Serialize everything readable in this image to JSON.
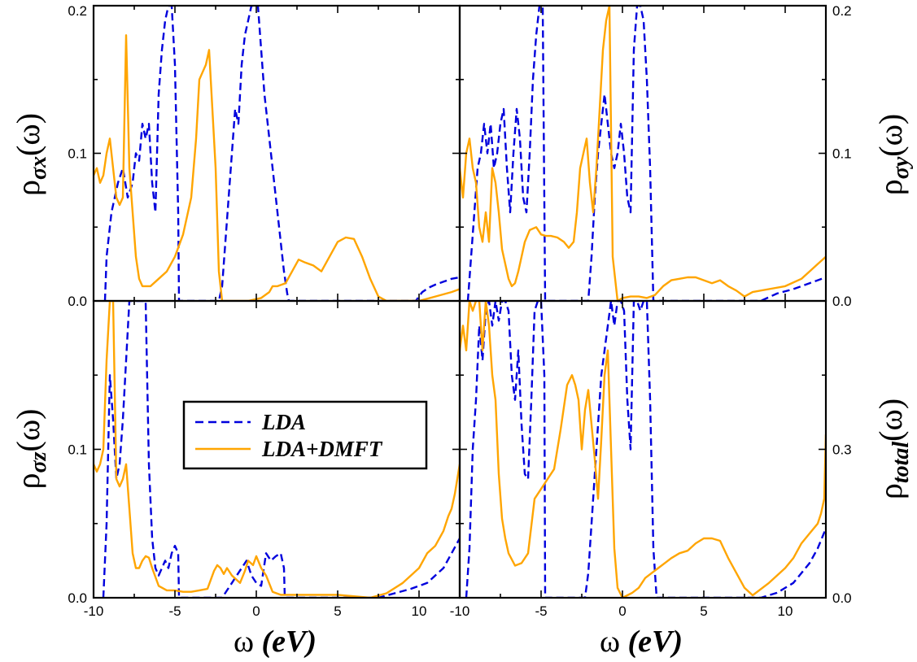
{
  "colors": {
    "lda": "#0000dd",
    "dmft": "#ffa500",
    "frame": "#000000"
  },
  "legend": {
    "placement": "middle-left of bottom-left panel",
    "entries": [
      "LDA",
      "LDA+DMFT"
    ]
  },
  "xaxis": {
    "label_symbol": "ω",
    "label_unit": "(eV)",
    "ticks_left": [
      "-10",
      "-5",
      "0",
      "5",
      "10"
    ],
    "ticks_right": [
      "-10",
      "-5",
      "0",
      "5",
      "10"
    ],
    "range": [
      -10,
      12.5
    ]
  },
  "panels": {
    "top_left": {
      "label_main": "ρ",
      "label_sub": "σx",
      "label_tail": "(ω)",
      "ticks": [
        "0.2",
        "0.1",
        "0.0"
      ]
    },
    "top_right": {
      "label_main": "ρ",
      "label_sub": "σy",
      "label_tail": "(ω)",
      "ticks": [
        "0.2",
        "0.1",
        "0.0"
      ]
    },
    "bottom_left": {
      "label_main": "ρ",
      "label_sub": "σz",
      "label_tail": "(ω)",
      "ticks": [
        "0.1",
        "0.0"
      ]
    },
    "bottom_right": {
      "label_main": "ρ",
      "label_sub": "total",
      "label_tail": "(ω)",
      "ticks": [
        "0.3",
        "0.0"
      ]
    }
  },
  "chart_data": [
    {
      "type": "line",
      "panel": "top_left",
      "xlim": [
        -10,
        12.5
      ],
      "ylim": [
        0,
        0.2
      ],
      "series": [
        {
          "name": "LDA",
          "style": "dashed",
          "x": [
            -9.3,
            -9.2,
            -8.9,
            -8.5,
            -8.2,
            -7.9,
            -7.6,
            -7.4,
            -7.2,
            -7.0,
            -6.8,
            -6.6,
            -6.4,
            -6.2,
            -6.0,
            -5.8,
            -5.6,
            -5.4,
            -5.2,
            -5.0,
            -4.8,
            -4.75,
            -4.6,
            -2.3,
            -2.1,
            -1.9,
            -1.7,
            -1.5,
            -1.3,
            -1.1,
            -0.9,
            -0.7,
            -0.5,
            -0.3,
            -0.1,
            0.1,
            0.3,
            0.5,
            0.7,
            0.9,
            1.1,
            1.3,
            1.5,
            1.7,
            1.9,
            2.0,
            9.8,
            10.2,
            10.6,
            11.0,
            11.5,
            12.0,
            12.5
          ],
          "y": [
            0,
            0.03,
            0.06,
            0.08,
            0.09,
            0.07,
            0.08,
            0.1,
            0.095,
            0.12,
            0.11,
            0.12,
            0.08,
            0.06,
            0.14,
            0.17,
            0.19,
            0.2,
            0.2,
            0.16,
            0.06,
            0.0,
            0.0,
            0.0,
            0.01,
            0.04,
            0.07,
            0.1,
            0.13,
            0.12,
            0.16,
            0.18,
            0.19,
            0.2,
            0.2,
            0.2,
            0.17,
            0.14,
            0.12,
            0.1,
            0.08,
            0.06,
            0.04,
            0.02,
            0.005,
            0.0,
            0.0,
            0.006,
            0.009,
            0.011,
            0.013,
            0.015,
            0.016
          ]
        },
        {
          "name": "LDA+DMFT",
          "style": "solid",
          "x": [
            -10,
            -9.8,
            -9.6,
            -9.4,
            -9.2,
            -9.0,
            -8.8,
            -8.6,
            -8.4,
            -8.2,
            -8.0,
            -7.8,
            -7.6,
            -7.4,
            -7.2,
            -7.0,
            -6.5,
            -6.0,
            -5.5,
            -5.0,
            -4.5,
            -4.0,
            -3.7,
            -3.5,
            -3.3,
            -3.1,
            -2.9,
            -2.7,
            -2.5,
            -2.3,
            -2.1,
            -1.5,
            -0.5,
            0.3,
            0.8,
            1.0,
            1.3,
            1.8,
            2.2,
            2.6,
            3.0,
            3.5,
            4.0,
            4.5,
            5.0,
            5.5,
            6.0,
            6.5,
            7.0,
            7.5,
            8.0,
            9.0,
            10.0,
            11.0,
            12.0,
            12.5
          ],
          "y": [
            0.085,
            0.09,
            0.08,
            0.085,
            0.1,
            0.11,
            0.09,
            0.07,
            0.065,
            0.07,
            0.18,
            0.09,
            0.06,
            0.03,
            0.015,
            0.01,
            0.01,
            0.015,
            0.02,
            0.03,
            0.045,
            0.07,
            0.11,
            0.15,
            0.155,
            0.16,
            0.17,
            0.13,
            0.09,
            0.02,
            0.0,
            0.0,
            0.0,
            0.002,
            0.006,
            0.01,
            0.01,
            0.012,
            0.02,
            0.028,
            0.026,
            0.024,
            0.02,
            0.03,
            0.04,
            0.043,
            0.042,
            0.03,
            0.015,
            0.003,
            0.0,
            0.0,
            0.0,
            0.003,
            0.006,
            0.008
          ]
        }
      ]
    },
    {
      "type": "line",
      "panel": "top_right",
      "xlim": [
        -10,
        12.5
      ],
      "ylim": [
        0,
        0.2
      ],
      "series": [
        {
          "name": "LDA",
          "style": "dashed",
          "x": [
            -9.5,
            -9.3,
            -9.1,
            -8.9,
            -8.7,
            -8.5,
            -8.3,
            -8.1,
            -7.9,
            -7.7,
            -7.5,
            -7.3,
            -7.1,
            -6.9,
            -6.7,
            -6.5,
            -6.3,
            -6.1,
            -5.9,
            -5.7,
            -5.5,
            -5.3,
            -5.1,
            -4.9,
            -4.75,
            -4.6,
            -2.1,
            -1.9,
            -1.7,
            -1.5,
            -1.3,
            -1.1,
            -0.9,
            -0.7,
            -0.5,
            -0.3,
            -0.1,
            0.1,
            0.3,
            0.5,
            0.7,
            0.9,
            1.1,
            1.3,
            1.5,
            1.7,
            1.9,
            8.5,
            9.5,
            10.5,
            11.0,
            11.5,
            12.0,
            12.5
          ],
          "y": [
            0.0,
            0.03,
            0.06,
            0.09,
            0.1,
            0.12,
            0.1,
            0.12,
            0.09,
            0.1,
            0.12,
            0.13,
            0.09,
            0.06,
            0.1,
            0.13,
            0.11,
            0.07,
            0.06,
            0.1,
            0.15,
            0.18,
            0.2,
            0.2,
            0.0,
            0.0,
            0.0,
            0.03,
            0.07,
            0.1,
            0.12,
            0.14,
            0.12,
            0.1,
            0.09,
            0.1,
            0.12,
            0.1,
            0.07,
            0.06,
            0.17,
            0.2,
            0.2,
            0.19,
            0.15,
            0.09,
            0.0,
            0.0,
            0.005,
            0.008,
            0.01,
            0.012,
            0.014,
            0.016
          ]
        },
        {
          "name": "LDA+DMFT",
          "style": "solid",
          "x": [
            -10,
            -9.8,
            -9.6,
            -9.4,
            -9.2,
            -9.0,
            -8.8,
            -8.6,
            -8.4,
            -8.2,
            -8.0,
            -7.8,
            -7.6,
            -7.4,
            -7.2,
            -7.0,
            -6.8,
            -6.6,
            -6.4,
            -6.2,
            -6.0,
            -5.7,
            -5.3,
            -5.0,
            -4.7,
            -4.4,
            -4.0,
            -3.6,
            -3.3,
            -3.0,
            -2.8,
            -2.6,
            -2.4,
            -2.2,
            -2.0,
            -1.8,
            -1.6,
            -1.4,
            -1.2,
            -1.0,
            -0.8,
            -0.6,
            -0.3,
            0.0,
            0.5,
            1.0,
            1.5,
            2.0,
            2.5,
            3.0,
            3.5,
            4.0,
            4.5,
            5.0,
            5.5,
            6.0,
            6.5,
            7.0,
            7.5,
            8.0,
            9.0,
            10.0,
            11.0,
            11.5,
            12.0,
            12.5
          ],
          "y": [
            0.09,
            0.07,
            0.1,
            0.11,
            0.09,
            0.08,
            0.05,
            0.04,
            0.06,
            0.04,
            0.09,
            0.08,
            0.06,
            0.035,
            0.025,
            0.015,
            0.01,
            0.012,
            0.02,
            0.03,
            0.04,
            0.048,
            0.05,
            0.045,
            0.044,
            0.044,
            0.043,
            0.04,
            0.036,
            0.04,
            0.06,
            0.09,
            0.1,
            0.11,
            0.08,
            0.06,
            0.09,
            0.13,
            0.17,
            0.19,
            0.2,
            0.03,
            0.0,
            0.002,
            0.003,
            0.003,
            0.002,
            0.004,
            0.01,
            0.014,
            0.015,
            0.016,
            0.016,
            0.014,
            0.012,
            0.014,
            0.01,
            0.007,
            0.003,
            0.006,
            0.008,
            0.01,
            0.015,
            0.02,
            0.025,
            0.03
          ]
        }
      ]
    },
    {
      "type": "line",
      "panel": "bottom_left",
      "xlim": [
        -10,
        12.5
      ],
      "ylim": [
        0,
        0.2
      ],
      "series": [
        {
          "name": "LDA",
          "style": "dashed",
          "x": [
            -9.4,
            -9.2,
            -9.0,
            -8.8,
            -8.6,
            -8.4,
            -8.2,
            -8.0,
            -7.8,
            -7.6,
            -7.4,
            -7.2,
            -7.0,
            -6.8,
            -6.6,
            -6.4,
            -6.2,
            -6.0,
            -5.8,
            -5.6,
            -5.4,
            -5.2,
            -5.0,
            -4.8,
            -4.75,
            -4.6,
            -2.1,
            -1.8,
            -1.5,
            -1.2,
            -0.9,
            -0.6,
            -0.3,
            0.0,
            0.3,
            0.6,
            0.9,
            1.2,
            1.5,
            1.7,
            1.75,
            1.8,
            7.5,
            8.5,
            9.5,
            10.5,
            11.0,
            11.5,
            12.0,
            12.5
          ],
          "y": [
            0.0,
            0.05,
            0.15,
            0.12,
            0.08,
            0.09,
            0.12,
            0.16,
            0.2,
            0.2,
            0.2,
            0.2,
            0.2,
            0.2,
            0.09,
            0.04,
            0.02,
            0.015,
            0.02,
            0.025,
            0.02,
            0.03,
            0.035,
            0.03,
            0.0,
            0.0,
            0.0,
            0.005,
            0.01,
            0.015,
            0.02,
            0.025,
            0.015,
            0.01,
            0.008,
            0.03,
            0.025,
            0.028,
            0.03,
            0.02,
            0.0,
            0.0,
            0.0,
            0.003,
            0.006,
            0.01,
            0.015,
            0.02,
            0.03,
            0.04
          ]
        },
        {
          "name": "LDA+DMFT",
          "style": "solid",
          "x": [
            -10,
            -9.8,
            -9.6,
            -9.4,
            -9.2,
            -9.0,
            -8.8,
            -8.6,
            -8.4,
            -8.2,
            -8.0,
            -7.8,
            -7.6,
            -7.4,
            -7.2,
            -7.0,
            -6.8,
            -6.6,
            -6.4,
            -6.0,
            -5.5,
            -5.0,
            -4.5,
            -4.0,
            -3.5,
            -3.0,
            -2.8,
            -2.6,
            -2.4,
            -2.2,
            -2.0,
            -1.8,
            -1.5,
            -1.2,
            -1.0,
            -0.7,
            -0.5,
            -0.2,
            0.0,
            0.3,
            0.6,
            1.0,
            1.5,
            2.0,
            3.0,
            4.0,
            5.0,
            6.0,
            7.0,
            8.0,
            9.0,
            9.5,
            10.0,
            10.5,
            11.0,
            11.5,
            11.8,
            12.0,
            12.2,
            12.5
          ],
          "y": [
            0.09,
            0.085,
            0.09,
            0.1,
            0.16,
            0.2,
            0.2,
            0.08,
            0.075,
            0.08,
            0.09,
            0.06,
            0.03,
            0.02,
            0.02,
            0.025,
            0.028,
            0.027,
            0.02,
            0.008,
            0.005,
            0.005,
            0.004,
            0.004,
            0.005,
            0.006,
            0.012,
            0.018,
            0.022,
            0.02,
            0.016,
            0.02,
            0.015,
            0.012,
            0.01,
            0.018,
            0.025,
            0.022,
            0.028,
            0.02,
            0.015,
            0.004,
            0.002,
            0.002,
            0.002,
            0.002,
            0.002,
            0.001,
            0.0,
            0.003,
            0.01,
            0.015,
            0.02,
            0.03,
            0.035,
            0.045,
            0.055,
            0.06,
            0.07,
            0.09
          ]
        }
      ]
    },
    {
      "type": "line",
      "panel": "bottom_right",
      "xlim": [
        -10,
        12.5
      ],
      "ylim": [
        0,
        0.6
      ],
      "series": [
        {
          "name": "LDA",
          "style": "dashed",
          "x": [
            -9.6,
            -9.4,
            -9.2,
            -9.0,
            -8.8,
            -8.6,
            -8.4,
            -8.2,
            -8.0,
            -7.8,
            -7.6,
            -7.4,
            -7.2,
            -7.0,
            -6.8,
            -6.6,
            -6.4,
            -6.2,
            -6.0,
            -5.8,
            -5.6,
            -5.4,
            -5.2,
            -5.0,
            -4.8,
            -4.75,
            -4.6,
            -2.3,
            -2.1,
            -1.9,
            -1.7,
            -1.5,
            -1.3,
            -1.1,
            -0.9,
            -0.7,
            -0.5,
            -0.3,
            -0.1,
            0.1,
            0.3,
            0.5,
            0.7,
            0.9,
            1.1,
            1.3,
            1.5,
            1.7,
            1.9,
            2.1,
            8.5,
            9.5,
            10.5,
            11.0,
            11.5,
            12.0,
            12.5
          ],
          "y": [
            0.0,
            0.1,
            0.3,
            0.4,
            0.55,
            0.48,
            0.58,
            0.6,
            0.55,
            0.6,
            0.56,
            0.6,
            0.6,
            0.58,
            0.45,
            0.4,
            0.5,
            0.35,
            0.25,
            0.24,
            0.4,
            0.58,
            0.6,
            0.6,
            0.45,
            0.0,
            0.0,
            0.0,
            0.05,
            0.15,
            0.25,
            0.35,
            0.45,
            0.5,
            0.55,
            0.6,
            0.55,
            0.6,
            0.6,
            0.58,
            0.4,
            0.3,
            0.6,
            0.6,
            0.58,
            0.6,
            0.6,
            0.4,
            0.1,
            0.0,
            0.0,
            0.01,
            0.03,
            0.05,
            0.07,
            0.1,
            0.14
          ]
        },
        {
          "name": "LDA+DMFT",
          "style": "solid",
          "x": [
            -10,
            -9.8,
            -9.6,
            -9.4,
            -9.2,
            -9.0,
            -8.8,
            -8.6,
            -8.4,
            -8.2,
            -8.0,
            -7.8,
            -7.6,
            -7.4,
            -7.2,
            -7.0,
            -6.6,
            -6.2,
            -5.8,
            -5.4,
            -5.0,
            -4.6,
            -4.2,
            -3.8,
            -3.4,
            -3.1,
            -2.9,
            -2.7,
            -2.5,
            -2.3,
            -2.1,
            -1.9,
            -1.7,
            -1.5,
            -1.3,
            -1.1,
            -0.9,
            -0.7,
            -0.5,
            -0.3,
            0.0,
            0.3,
            0.6,
            1.0,
            1.4,
            1.8,
            2.2,
            2.6,
            3.0,
            3.5,
            4.0,
            4.5,
            5.0,
            5.5,
            6.0,
            6.5,
            7.0,
            7.5,
            8.0,
            9.0,
            10.0,
            10.5,
            11.0,
            11.5,
            12.0,
            12.2,
            12.4,
            12.5
          ],
          "y": [
            0.5,
            0.55,
            0.5,
            0.6,
            0.58,
            0.6,
            0.6,
            0.5,
            0.6,
            0.55,
            0.45,
            0.4,
            0.25,
            0.16,
            0.12,
            0.09,
            0.065,
            0.07,
            0.09,
            0.2,
            0.22,
            0.24,
            0.26,
            0.34,
            0.43,
            0.45,
            0.43,
            0.4,
            0.3,
            0.38,
            0.42,
            0.35,
            0.28,
            0.2,
            0.32,
            0.45,
            0.5,
            0.3,
            0.1,
            0.02,
            0.0,
            0.005,
            0.01,
            0.02,
            0.04,
            0.05,
            0.06,
            0.07,
            0.08,
            0.09,
            0.095,
            0.11,
            0.12,
            0.12,
            0.115,
            0.08,
            0.05,
            0.02,
            0.005,
            0.03,
            0.06,
            0.08,
            0.11,
            0.13,
            0.15,
            0.17,
            0.2,
            0.33
          ]
        }
      ]
    }
  ]
}
